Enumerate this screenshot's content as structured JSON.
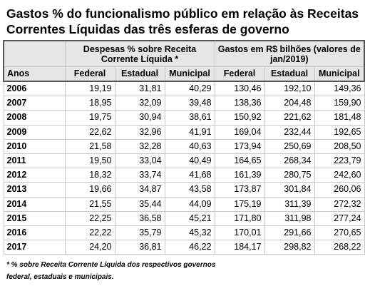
{
  "title": "Gastos % do funcionalismo público em relação às Receitas Correntes Líquidas das três esferas de governo",
  "groups": {
    "pct": "Despesas % sobre Receita Corrente Líquida *",
    "abs": "Gastos em R$ bilhões (valores de jan/2019)"
  },
  "columns": [
    "Anos",
    "Federal",
    "Estadual",
    "Municipal",
    "Federal",
    "Estadual",
    "Municipal"
  ],
  "rows": [
    [
      "2006",
      "19,19",
      "31,81",
      "40,29",
      "130,46",
      "192,10",
      "149,36"
    ],
    [
      "2007",
      "18,95",
      "32,09",
      "39,48",
      "138,36",
      "204,48",
      "159,90"
    ],
    [
      "2008",
      "19,75",
      "30,94",
      "38,61",
      "150,92",
      "221,62",
      "181,48"
    ],
    [
      "2009",
      "22,62",
      "32,96",
      "41,91",
      "169,04",
      "232,44",
      "192,65"
    ],
    [
      "2010",
      "21,58",
      "32,28",
      "40,63",
      "173,94",
      "250,69",
      "208,50"
    ],
    [
      "2011",
      "19,50",
      "33,04",
      "40,49",
      "164,65",
      "268,34",
      "223,79"
    ],
    [
      "2012",
      "18,32",
      "33,74",
      "41,68",
      "161,39",
      "280,75",
      "242,60"
    ],
    [
      "2013",
      "19,66",
      "34,87",
      "43,58",
      "173,87",
      "301,84",
      "260,06"
    ],
    [
      "2014",
      "21,55",
      "35,44",
      "44,09",
      "175,19",
      "311,39",
      "272,32"
    ],
    [
      "2015",
      "22,25",
      "36,58",
      "45,21",
      "171,80",
      "311,98",
      "277,24"
    ],
    [
      "2016",
      "22,22",
      "35,79",
      "45,32",
      "170,01",
      "291,66",
      "270,65"
    ],
    [
      "2017",
      "24,20",
      "36,81",
      "46,22",
      "184,17",
      "298,82",
      "268,22"
    ]
  ],
  "footnote": {
    "line1": "* % sobre Receita Corrente Líquida dos respectivos governos",
    "line2": "federal, estaduais e municipais."
  }
}
